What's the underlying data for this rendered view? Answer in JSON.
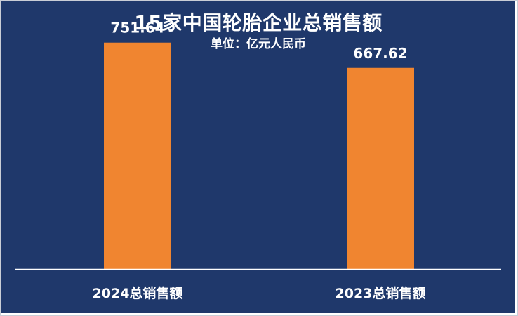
{
  "colors": {
    "background": "#1f386b",
    "bar": "#f08530",
    "axis": "#ffffff",
    "text": "#ffffff"
  },
  "chart_data": {
    "type": "bar",
    "title": "15家中国轮胎企业总销售额",
    "subtitle": "单位：亿元人民币",
    "categories": [
      "2024总销售额",
      "2023总销售额"
    ],
    "values": [
      751.64,
      667.62
    ],
    "data_labels": [
      "751.64",
      "667.62"
    ],
    "ylim": [
      0,
      800
    ],
    "grid": false,
    "legend": "none"
  }
}
